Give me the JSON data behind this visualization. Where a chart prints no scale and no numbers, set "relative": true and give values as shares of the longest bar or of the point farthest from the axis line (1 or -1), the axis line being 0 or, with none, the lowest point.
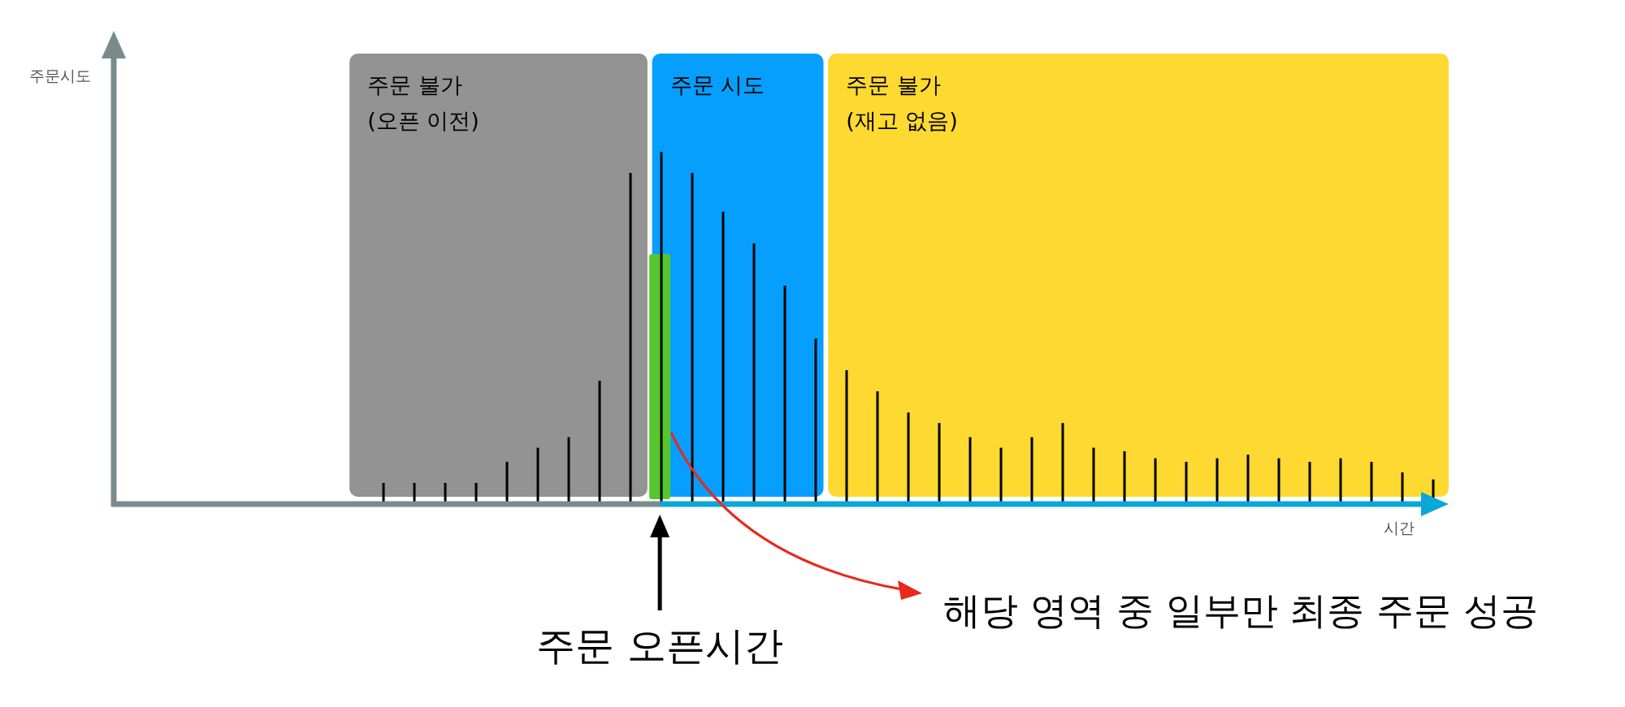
{
  "chart_data": {
    "type": "bar",
    "relative": true,
    "xlabel": "시간",
    "categories": [
      null,
      null,
      null,
      null,
      null,
      null,
      null,
      null,
      null,
      null,
      null,
      null,
      null,
      null,
      null,
      null,
      null,
      null,
      null,
      null,
      null,
      null,
      null,
      null,
      null,
      null,
      null,
      null,
      null,
      null,
      null,
      null,
      null,
      null,
      null
    ],
    "series": [
      {
        "color": "#000000",
        "values": [
          0.06,
          0.06,
          0.06,
          0.06,
          0.12,
          0.16,
          0.19,
          0.35,
          0.94,
          1,
          0.94,
          0.83,
          0.74,
          0.62,
          0.47,
          0.38,
          0.32,
          0.26,
          0.23,
          0.19,
          0.16,
          0.19,
          0.23,
          0.16,
          0.15,
          0.13,
          0.12,
          0.13,
          0.14,
          0.13,
          0.12,
          0.13,
          0.12,
          0.09,
          0.07
        ]
      }
    ],
    "annotations": [
      "주문시도",
      "주문 불가\n(오픈 이전)",
      "주문 시도",
      "주문 불가\n(재고 없음)",
      "주문 오픈시간",
      "해당 영역 중 일부만 최종 주문 성공"
    ]
  }
}
